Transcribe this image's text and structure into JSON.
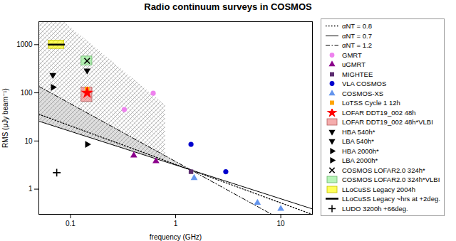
{
  "chart_data": {
    "type": "scatter",
    "title": "Radio continuum surveys in COSMOS",
    "xlabel": "frequency (GHz)",
    "ylabel": "RMS (μJy beam⁻¹)",
    "log": true,
    "xlim": [
      0.05,
      20
    ],
    "ylim": [
      0.3,
      3000
    ],
    "xticks": [
      0.1,
      1,
      10
    ],
    "yticks": [
      1,
      10,
      100,
      1000
    ],
    "grid": false,
    "legend": "right",
    "series": [
      {
        "type": "area",
        "color": "gray",
        "x": [
          0.05,
          1.4
        ],
        "y_low": [
          25.76,
          2.5
        ],
        "y_high": [
          136.31,
          2.5
        ]
      },
      {
        "type": "hatch",
        "color": "gray",
        "x": [
          0.05,
          0.0865,
          0.8
        ],
        "y_low": [
          25.76,
          17.55,
          3.7
        ],
        "y_high": [
          3000,
          3000,
          54.76
        ]
      },
      {
        "name": "αNT = 0.8",
        "type": "line",
        "color": "black",
        "line_style": "dotted",
        "x": [
          0.05,
          19.82
        ],
        "values": [
          35.95,
          0.3
        ]
      },
      {
        "name": "αNT = 0.7",
        "type": "line",
        "color": "black",
        "line_style": "solid",
        "x": [
          0.05,
          20
        ],
        "values": [
          25.76,
          0.3886
        ]
      },
      {
        "name": "αNT = 1.2",
        "type": "line",
        "color": "black",
        "line_style": "dashdot",
        "x": [
          0.05,
          8.19
        ],
        "values": [
          136.31,
          0.3
        ]
      },
      {
        "name": "GMRT",
        "type": "scatter",
        "color": "#EE82EE",
        "marker": "circle",
        "x": [
          0.325,
          0.612
        ],
        "values": [
          45,
          98
        ]
      },
      {
        "name": "uGMRT",
        "type": "scatter",
        "color": "#8B008B",
        "marker": "triangle-up",
        "x": [
          0.4,
          0.65
        ],
        "values": [
          5.0,
          3.8
        ]
      },
      {
        "name": "MIGHTEE",
        "type": "scatter",
        "color": "#5B2C6F",
        "marker": "square",
        "x": [
          1.4
        ],
        "values": [
          2.3
        ]
      },
      {
        "name": "VLA COSMOS",
        "type": "scatter",
        "color": "#0000CD",
        "marker": "circle",
        "x": [
          1.4,
          3.0
        ],
        "values": [
          8.5,
          2.3
        ]
      },
      {
        "name": "COSMOS-XS",
        "type": "scatter",
        "color": "#6495ED",
        "marker": "triangle-up",
        "x": [
          1.5,
          6.0,
          10.0
        ],
        "values": [
          1.7,
          0.52,
          0.39
        ]
      },
      {
        "name": "LoTSS Cycle 1 12h",
        "type": "scatter",
        "color": "#FFA500",
        "marker": "square",
        "x": [
          0.144
        ],
        "values": [
          120
        ]
      },
      {
        "name": "LOFAR DDT19_002 48h",
        "type": "scatter",
        "color": "red",
        "marker": "star",
        "x": [
          0.144
        ],
        "values": [
          100
        ]
      },
      {
        "name": "LOFAR DDT19_002 48h*VLBI",
        "type": "rect",
        "color": "#F08080",
        "x0": [
          0.127
        ],
        "x1": [
          0.161
        ],
        "y0": [
          65
        ],
        "y1": [
          130
        ]
      },
      {
        "name": "HBA 540h*",
        "type": "scatter",
        "color": "black",
        "marker": "triangle-down",
        "x": [
          0.144
        ],
        "values": [
          290
        ]
      },
      {
        "name": "LBA 540h*",
        "type": "scatter",
        "color": "black",
        "marker": "triangle-down",
        "x": [
          0.068
        ],
        "values": [
          235
        ]
      },
      {
        "name": "HBA 2000h*",
        "type": "scatter",
        "color": "black",
        "marker": "triangle-right",
        "x": [
          0.144
        ],
        "values": [
          8.5
        ]
      },
      {
        "name": "LBA 2000h*",
        "type": "scatter",
        "color": "black",
        "marker": "triangle-right",
        "x": [
          0.068
        ],
        "values": [
          130
        ]
      },
      {
        "name": "COSMOS LOFAR2.0 324h*",
        "type": "scatter",
        "color": "black",
        "marker": "x",
        "x": [
          0.144
        ],
        "values": [
          460
        ]
      },
      {
        "name": "COSMOS LOFAR2.0 324h*VLBI",
        "type": "rect",
        "color": "#90EE90",
        "x0": [
          0.127
        ],
        "x1": [
          0.161
        ],
        "y0": [
          370
        ],
        "y1": [
          570
        ]
      },
      {
        "name": "LLoCuSS Legacy 2004h",
        "type": "rect",
        "color": "#FFFF00",
        "x0": [
          0.062
        ],
        "x1": [
          0.087
        ],
        "y0": [
          820
        ],
        "y1": [
          1220
        ]
      },
      {
        "name": "LLoCuSS Legacy ~hrs at +2deg.",
        "type": "line",
        "color": "black",
        "line_style": "thick",
        "x": [
          0.062,
          0.087
        ],
        "values": [
          1000,
          1000
        ]
      },
      {
        "name": "LUDO 3200h +66deg.",
        "type": "scatter",
        "color": "black",
        "marker": "plus",
        "x": [
          0.074
        ],
        "values": [
          2.2
        ]
      }
    ]
  }
}
